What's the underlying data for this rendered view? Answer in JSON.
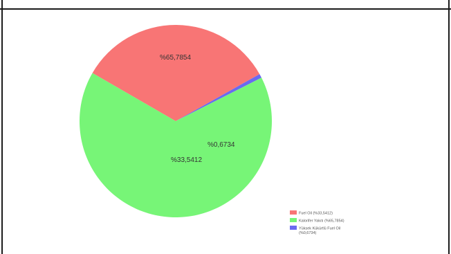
{
  "chart_data": {
    "type": "pie",
    "title": "",
    "slices": [
      {
        "name": "Fuel Oil (%33,5412)",
        "label": "%33,5412",
        "value": 33.5412,
        "color": "#f87575"
      },
      {
        "name": "Kalorifer Yakıtı (%65,7854)",
        "label": "%65,7854",
        "value": 65.7854,
        "color": "#77f577"
      },
      {
        "name": "Yüksek Kükürtlü Fuel Oil (%0,6734)",
        "label": "%0,6734",
        "value": 0.6734,
        "color": "#6a6af0"
      }
    ],
    "legend_position": "bottom-right"
  }
}
